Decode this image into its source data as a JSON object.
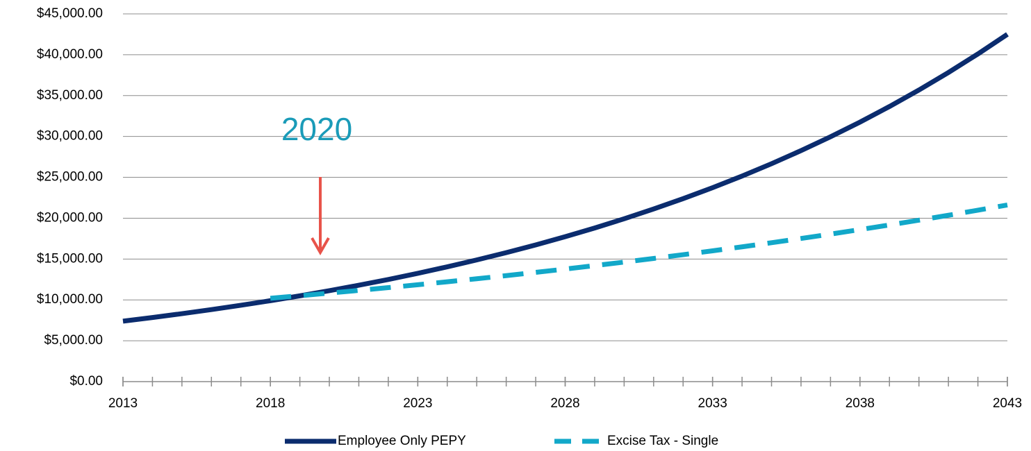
{
  "chart_data": {
    "type": "line",
    "annotation": "2020",
    "x": [
      2013,
      2014,
      2015,
      2016,
      2017,
      2018,
      2019,
      2020,
      2021,
      2022,
      2023,
      2024,
      2025,
      2026,
      2027,
      2028,
      2029,
      2030,
      2031,
      2032,
      2033,
      2034,
      2035,
      2036,
      2037,
      2038,
      2039,
      2040,
      2041,
      2042,
      2043
    ],
    "series": [
      {
        "name": "Employee Only PEPY",
        "color": "#0b2c6e",
        "dash": false,
        "values": [
          7400,
          7844,
          8315,
          8814,
          9342,
          9903,
          10497,
          11127,
          11794,
          12502,
          13252,
          14047,
          14890,
          15783,
          16730,
          17734,
          18798,
          19926,
          21122,
          22389,
          23732,
          25156,
          26666,
          28266,
          29962,
          31759,
          33665,
          35685,
          37826,
          40096,
          42501
        ]
      },
      {
        "name": "Excise Tax - Single",
        "color": "#12a8c9",
        "dash": true,
        "values": [
          null,
          null,
          null,
          null,
          null,
          10200,
          10511,
          10832,
          11162,
          11502,
          11853,
          12215,
          12587,
          12971,
          13367,
          13774,
          14194,
          14627,
          15073,
          15533,
          16007,
          16495,
          16998,
          17517,
          18051,
          18601,
          19169,
          19753,
          20356,
          20977,
          21617
        ]
      }
    ],
    "xlim": [
      2013,
      2043
    ],
    "xticks": [
      2013,
      2018,
      2023,
      2028,
      2033,
      2038,
      2043
    ],
    "ylim": [
      0,
      45000
    ],
    "yticks": [
      {
        "value": 0,
        "label": "$0.00"
      },
      {
        "value": 5000,
        "label": "$5,000.00"
      },
      {
        "value": 10000,
        "label": "$10,000.00"
      },
      {
        "value": 15000,
        "label": "$15,000.00"
      },
      {
        "value": 20000,
        "label": "$20,000.00"
      },
      {
        "value": 25000,
        "label": "$25,000.00"
      },
      {
        "value": 30000,
        "label": "$30,000.00"
      },
      {
        "value": 35000,
        "label": "$35,000.00"
      },
      {
        "value": 40000,
        "label": "$40,000.00"
      },
      {
        "value": 45000,
        "label": "$45,000.00"
      }
    ],
    "grid": true,
    "legend": "bottom"
  }
}
